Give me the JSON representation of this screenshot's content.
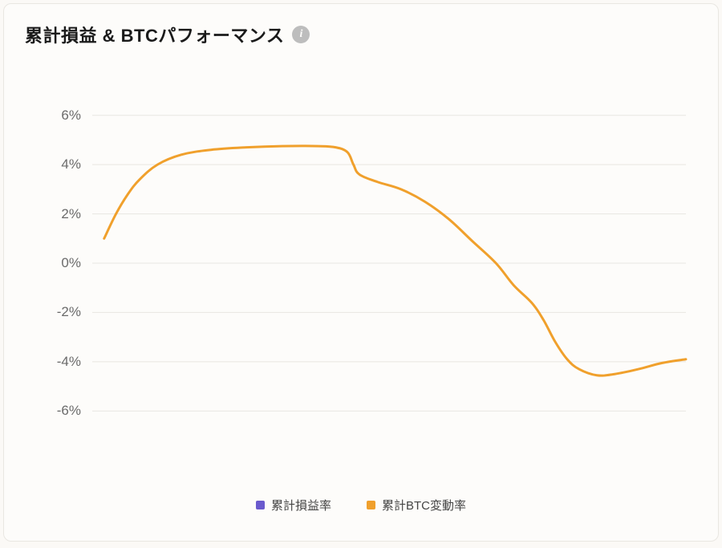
{
  "title": "累計損益 & BTCパフォーマンス",
  "info_icon_glyph": "i",
  "background_color": "#fdfcfa",
  "border_color": "#e9e7e2",
  "chart": {
    "type": "line",
    "x_range": [
      0,
      100
    ],
    "ylim": [
      -7,
      7
    ],
    "yticks": [
      6,
      4,
      2,
      0,
      -2,
      -4,
      -6
    ],
    "ytick_labels": [
      "6%",
      "4%",
      "2%",
      "0%",
      "-2%",
      "-4%",
      "-6%"
    ],
    "ytick_fontsize": 17,
    "ytick_color": "#6b6b6b",
    "grid_color": "#e8e6e1",
    "line_width": 3,
    "series": [
      {
        "id": "cum_pnl",
        "label": "累計損益率",
        "color": "#6a5acd",
        "visible": false,
        "points": []
      },
      {
        "id": "cum_btc",
        "label": "累計BTC変動率",
        "color": "#f0a02c",
        "visible": true,
        "points": [
          [
            2,
            1.0
          ],
          [
            4,
            2.0
          ],
          [
            6,
            2.8
          ],
          [
            8,
            3.4
          ],
          [
            11,
            4.0
          ],
          [
            15,
            4.4
          ],
          [
            20,
            4.6
          ],
          [
            26,
            4.7
          ],
          [
            32,
            4.75
          ],
          [
            38,
            4.75
          ],
          [
            41,
            4.7
          ],
          [
            43,
            4.5
          ],
          [
            44,
            4.0
          ],
          [
            45,
            3.6
          ],
          [
            48,
            3.3
          ],
          [
            52,
            3.0
          ],
          [
            56,
            2.5
          ],
          [
            60,
            1.8
          ],
          [
            64,
            0.9
          ],
          [
            68,
            0.0
          ],
          [
            71,
            -0.9
          ],
          [
            74,
            -1.6
          ],
          [
            76,
            -2.3
          ],
          [
            78,
            -3.2
          ],
          [
            80,
            -3.9
          ],
          [
            82,
            -4.3
          ],
          [
            85,
            -4.55
          ],
          [
            88,
            -4.5
          ],
          [
            92,
            -4.3
          ],
          [
            96,
            -4.05
          ],
          [
            100,
            -3.9
          ]
        ]
      }
    ]
  },
  "legend": {
    "items": [
      {
        "label": "累計損益率",
        "color": "#6a5acd"
      },
      {
        "label": "累計BTC変動率",
        "color": "#f0a02c"
      }
    ],
    "fontsize": 15
  }
}
